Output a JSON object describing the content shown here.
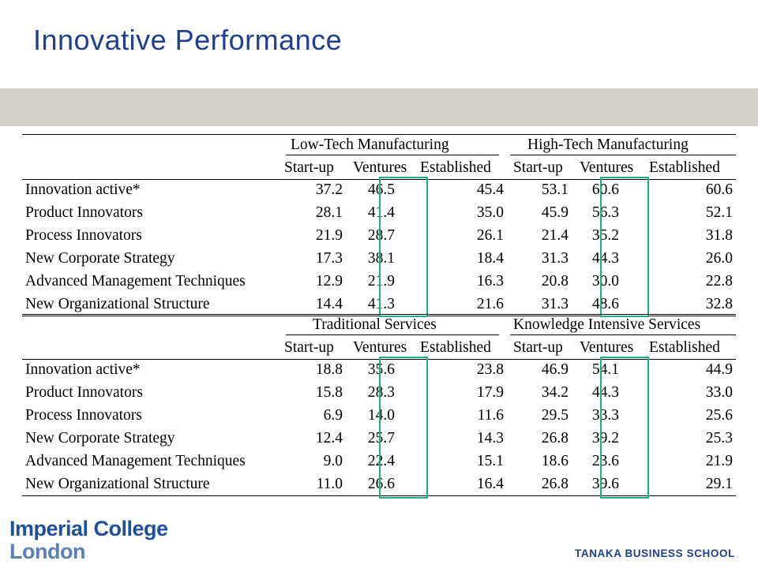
{
  "title": "Innovative Performance",
  "colors": {
    "title": "#1f3f8f",
    "band": "#d4cec8",
    "highlight_box": "#1db08a"
  },
  "sections": [
    {
      "group_left": "Low-Tech Manufacturing",
      "group_right": "High-Tech Manufacturing",
      "columns": [
        "Start-up",
        "Ventures",
        "Established",
        "Start-up",
        "Ventures",
        "Established"
      ],
      "rows": [
        {
          "label": "Innovation active*",
          "values": [
            "37.2",
            "46.5",
            "45.4",
            "53.1",
            "60.6",
            "60.6"
          ]
        },
        {
          "label": "Product Innovators",
          "values": [
            "28.1",
            "41.4",
            "35.0",
            "45.9",
            "56.3",
            "52.1"
          ]
        },
        {
          "label": "Process Innovators",
          "values": [
            "21.9",
            "28.7",
            "26.1",
            "21.4",
            "35.2",
            "31.8"
          ]
        },
        {
          "label": "New Corporate Strategy",
          "values": [
            "17.3",
            "38.1",
            "18.4",
            "31.3",
            "44.3",
            "26.0"
          ]
        },
        {
          "label": "Advanced Management Techniques",
          "values": [
            "12.9",
            "21.9",
            "16.3",
            "20.8",
            "30.0",
            "22.8"
          ]
        },
        {
          "label": "New Organizational Structure",
          "values": [
            "14.4",
            "41.3",
            "21.6",
            "31.3",
            "48.6",
            "32.8"
          ]
        }
      ]
    },
    {
      "group_left": "Traditional Services",
      "group_right": "Knowledge Intensive Services",
      "columns": [
        "Start-up",
        "Ventures",
        "Established",
        "Start-up",
        "Ventures",
        "Established"
      ],
      "rows": [
        {
          "label": "Innovation active*",
          "values": [
            "18.8",
            "35.6",
            "23.8",
            "46.9",
            "54.1",
            "44.9"
          ]
        },
        {
          "label": "Product Innovators",
          "values": [
            "15.8",
            "28.3",
            "17.9",
            "34.2",
            "44.3",
            "33.0"
          ]
        },
        {
          "label": "Process Innovators",
          "values": [
            "6.9",
            "14.0",
            "11.6",
            "29.5",
            "33.3",
            "25.6"
          ]
        },
        {
          "label": "New Corporate Strategy",
          "values": [
            "12.4",
            "25.7",
            "14.3",
            "26.8",
            "39.2",
            "25.3"
          ]
        },
        {
          "label": "Advanced Management Techniques",
          "values": [
            "9.0",
            "22.4",
            "15.1",
            "18.6",
            "23.6",
            "21.9"
          ]
        },
        {
          "label": "New Organizational Structure",
          "values": [
            "11.0",
            "26.6",
            "16.4",
            "26.8",
            "39.6",
            "29.1"
          ]
        }
      ]
    }
  ],
  "logo": {
    "line1": "Imperial College",
    "line2": "London"
  },
  "school": "TANAKA BUSINESS SCHOOL"
}
